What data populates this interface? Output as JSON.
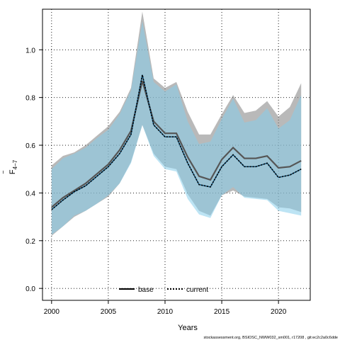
{
  "chart_data": {
    "type": "line",
    "xlabel": "Years",
    "ylabel": "F",
    "ylabel_bar": "‾",
    "ylabel_sub": "4−7",
    "xlim": [
      1999.2,
      2022.8
    ],
    "ylim": [
      -0.05,
      1.17
    ],
    "x_ticks": [
      2000,
      2005,
      2010,
      2015,
      2020
    ],
    "y_ticks": [
      0.0,
      0.2,
      0.4,
      0.6,
      0.8,
      1.0
    ],
    "y_tick_labels": [
      "0.0",
      "0.2",
      "0.4",
      "0.6",
      "0.8",
      "1.0"
    ],
    "grid": true,
    "legend_position": "bottom",
    "footer": "stockassessment.org, BSIOSC_NWW032_sm001, r17208 , git:ec2c2a0c6dde",
    "x": [
      2000,
      2001,
      2002,
      2003,
      2004,
      2005,
      2006,
      2007,
      2008,
      2009,
      2010,
      2011,
      2012,
      2013,
      2014,
      2015,
      2016,
      2017,
      2018,
      2019,
      2020,
      2021,
      2022
    ],
    "series": [
      {
        "name": "base",
        "color": "#000000",
        "line_color": "#555555",
        "band_color": "#7f7f7f",
        "dash": "solid",
        "values": [
          0.34,
          0.38,
          0.41,
          0.44,
          0.48,
          0.52,
          0.58,
          0.66,
          0.87,
          0.7,
          0.65,
          0.65,
          0.55,
          0.47,
          0.455,
          0.54,
          0.59,
          0.545,
          0.545,
          0.555,
          0.505,
          0.51,
          0.535
        ],
        "lower": [
          0.22,
          0.26,
          0.3,
          0.325,
          0.355,
          0.385,
          0.44,
          0.53,
          0.685,
          0.565,
          0.51,
          0.5,
          0.395,
          0.325,
          0.305,
          0.39,
          0.41,
          0.385,
          0.38,
          0.375,
          0.34,
          0.335,
          0.32
        ],
        "upper": [
          0.515,
          0.555,
          0.57,
          0.6,
          0.64,
          0.68,
          0.74,
          0.84,
          1.16,
          0.88,
          0.84,
          0.865,
          0.74,
          0.645,
          0.645,
          0.73,
          0.81,
          0.735,
          0.745,
          0.785,
          0.72,
          0.76,
          0.86
        ]
      },
      {
        "name": "current",
        "color": "#0b4f7a",
        "line_color": "#000000",
        "band_color": "#87ceeb",
        "dash": "dotted",
        "values": [
          0.33,
          0.37,
          0.405,
          0.43,
          0.47,
          0.51,
          0.565,
          0.645,
          0.895,
          0.685,
          0.635,
          0.635,
          0.525,
          0.435,
          0.425,
          0.51,
          0.56,
          0.51,
          0.51,
          0.525,
          0.465,
          0.475,
          0.5
        ],
        "lower": [
          0.225,
          0.26,
          0.305,
          0.325,
          0.355,
          0.39,
          0.44,
          0.525,
          0.685,
          0.555,
          0.5,
          0.49,
          0.375,
          0.31,
          0.295,
          0.39,
          0.425,
          0.38,
          0.375,
          0.37,
          0.325,
          0.315,
          0.305
        ],
        "upper": [
          0.5,
          0.545,
          0.565,
          0.59,
          0.63,
          0.665,
          0.73,
          0.83,
          1.12,
          0.865,
          0.825,
          0.855,
          0.7,
          0.605,
          0.615,
          0.71,
          0.795,
          0.695,
          0.705,
          0.755,
          0.67,
          0.705,
          0.81
        ]
      }
    ]
  }
}
